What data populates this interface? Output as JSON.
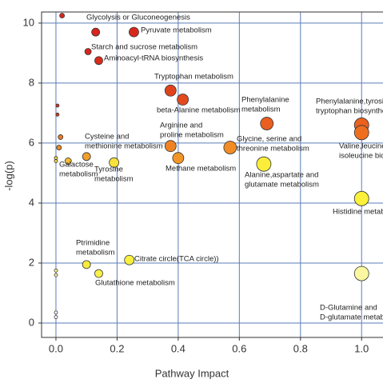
{
  "chart_data": {
    "type": "scatter",
    "xlabel": "Pathway Impact",
    "ylabel": "-log(p)",
    "xlim": [
      -0.047,
      1.07
    ],
    "ylim": [
      -0.48,
      10.37
    ],
    "xticks": [
      {
        "value": 0,
        "label": "0.0"
      },
      0.2,
      0.4,
      0.6,
      0.8,
      {
        "value": 1,
        "label": "1.0"
      }
    ],
    "yticks": [
      0,
      2,
      4,
      6,
      8,
      10
    ],
    "grid": true,
    "x": [
      0.02,
      0.13,
      0.255,
      0.105,
      0.14,
      0.375,
      0.415,
      0.69,
      1.0,
      1.0,
      0.005,
      0.005,
      0.015,
      0.01,
      0.0,
      0.0,
      0.1,
      0.04,
      0.19,
      0.375,
      0.4,
      0.57,
      0.68,
      1.0,
      0.1,
      0.24,
      0.14,
      0.0,
      0.0,
      1.0,
      0.0,
      0.0
    ],
    "values": [
      10.25,
      9.7,
      9.7,
      9.05,
      8.75,
      7.75,
      7.45,
      6.65,
      6.6,
      6.35,
      7.25,
      6.95,
      6.2,
      5.85,
      5.5,
      5.4,
      5.55,
      5.4,
      5.35,
      5.9,
      5.5,
      5.85,
      5.3,
      4.15,
      1.95,
      2.1,
      1.65,
      1.75,
      1.6,
      1.65,
      0.35,
      0.2
    ],
    "sizes": [
      3,
      5,
      6,
      4,
      5,
      7,
      7,
      8,
      9,
      9,
      2,
      2,
      3,
      3,
      2,
      2,
      5,
      4,
      6,
      7,
      7,
      8,
      9,
      9,
      5,
      6,
      5,
      2,
      2,
      9,
      2,
      2
    ],
    "colors": [
      "#d7261e",
      "#d7261e",
      "#d8281d",
      "#d7261e",
      "#d92b1c",
      "#e0431c",
      "#e34a1d",
      "#ea5e1f",
      "#eb611f",
      "#ee6e20",
      "#d9341c",
      "#db3a1c",
      "#ed7a22",
      "#f08a25",
      "#f5d548",
      "#f5d548",
      "#f2a02a",
      "#f5bb33",
      "#f7e13a",
      "#ef8324",
      "#f29528",
      "#f28c26",
      "#fbee3a",
      "#fbf03a",
      "#f6ec3c",
      "#f9f03e",
      "#faf04a",
      "#fdf58a",
      "#fdf7b0",
      "#fbf7a0",
      "#ffffff",
      "#ffffff"
    ],
    "labels": [
      null,
      [
        "Glycolysis or Gluconeogenesis"
      ],
      [
        "Pyruvate metabolism"
      ],
      [
        "Starch and sucrose metabolism"
      ],
      [
        "Aminoacyl-tRNA biosynthesis"
      ],
      [
        "Tryptophan metabolism"
      ],
      [
        "beta-Alanine metabolism"
      ],
      [
        "Phenylalanine",
        "metabolism"
      ],
      [
        "Phenylalanine,tyrosine and",
        "tryptophan biosynthesis"
      ],
      [
        "Valine,leucine and",
        "isoleucine biosynthesis"
      ],
      null,
      null,
      null,
      null,
      null,
      null,
      [
        "Cysteine and",
        "methionine metabolism"
      ],
      [
        "Galactose",
        "metabolism"
      ],
      [
        "Tyrosine",
        "metabolism"
      ],
      [
        "Arginine and",
        "proline metabolism"
      ],
      [
        "Methane metabolism"
      ],
      [
        "Glycine, serine and",
        "threonine metabolism"
      ],
      [
        "Alanine,aspartate and",
        "glutamate metabolism"
      ],
      [
        "Histidine metabolism"
      ],
      [
        "Ptrimidine",
        "metabolism"
      ],
      [
        "Citrate circle(TCA circle))"
      ],
      [
        "Glutathione metabolism"
      ],
      null,
      null,
      [
        "D-Glutamine and",
        "D-glutamate metabolism"
      ],
      null,
      null
    ]
  }
}
